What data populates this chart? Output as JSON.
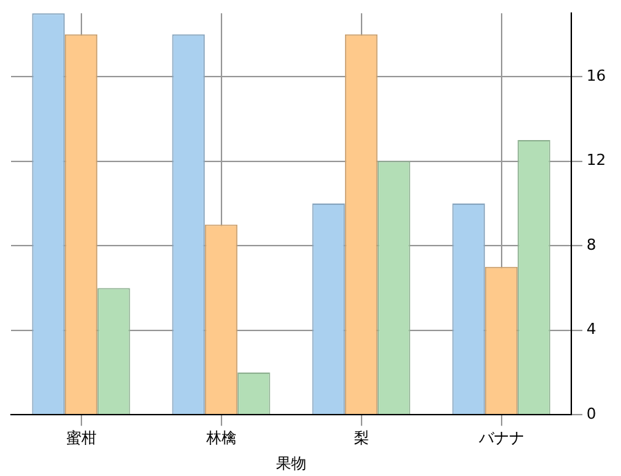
{
  "chart_data": {
    "type": "bar",
    "xlabel": "果物",
    "categories": [
      "蜜柑",
      "林檎",
      "梨",
      "バナナ"
    ],
    "series": [
      {
        "color": "#aad0ef",
        "values": [
          19,
          18,
          10,
          10
        ]
      },
      {
        "color": "#fec98b",
        "values": [
          18,
          9,
          18,
          7
        ]
      },
      {
        "color": "#b3deb6",
        "values": [
          6,
          2,
          12,
          13
        ]
      }
    ],
    "ylim": [
      0,
      19
    ],
    "yticks": [
      0,
      4,
      8,
      12,
      16
    ],
    "grid": true
  }
}
